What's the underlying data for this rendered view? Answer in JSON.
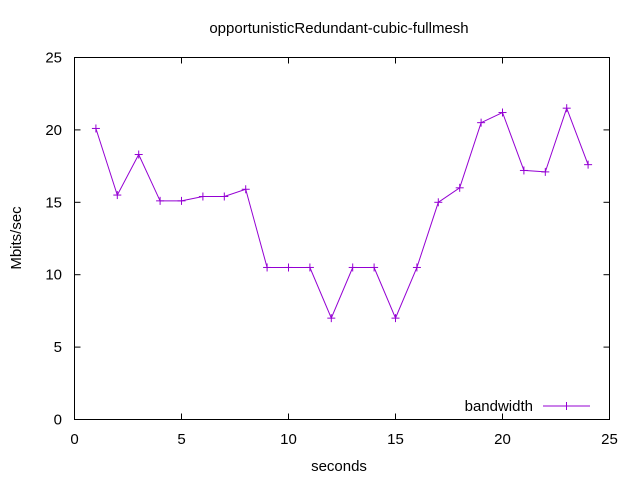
{
  "chart_data": {
    "type": "line",
    "title": "opportunisticRedundant-cubic-fullmesh",
    "xlabel": "seconds",
    "ylabel": "Mbits/sec",
    "xlim": [
      0,
      25
    ],
    "ylim": [
      0,
      25
    ],
    "xticks": [
      0,
      5,
      10,
      15,
      20,
      25
    ],
    "yticks": [
      0,
      5,
      10,
      15,
      20,
      25
    ],
    "grid": false,
    "legend_position": "bottom-right",
    "series": [
      {
        "name": "bandwidth",
        "color": "#9400d3",
        "marker": "plus",
        "x": [
          1,
          2,
          3,
          4,
          5,
          6,
          7,
          8,
          9,
          10,
          11,
          12,
          13,
          14,
          15,
          16,
          17,
          18,
          19,
          20,
          21,
          22,
          23,
          24
        ],
        "y": [
          20.1,
          15.5,
          18.3,
          15.1,
          15.1,
          15.4,
          15.4,
          15.9,
          10.5,
          10.5,
          10.5,
          7.0,
          10.5,
          10.5,
          7.0,
          10.5,
          15.0,
          16.0,
          20.5,
          21.2,
          17.2,
          17.1,
          21.5,
          17.6
        ]
      }
    ]
  }
}
